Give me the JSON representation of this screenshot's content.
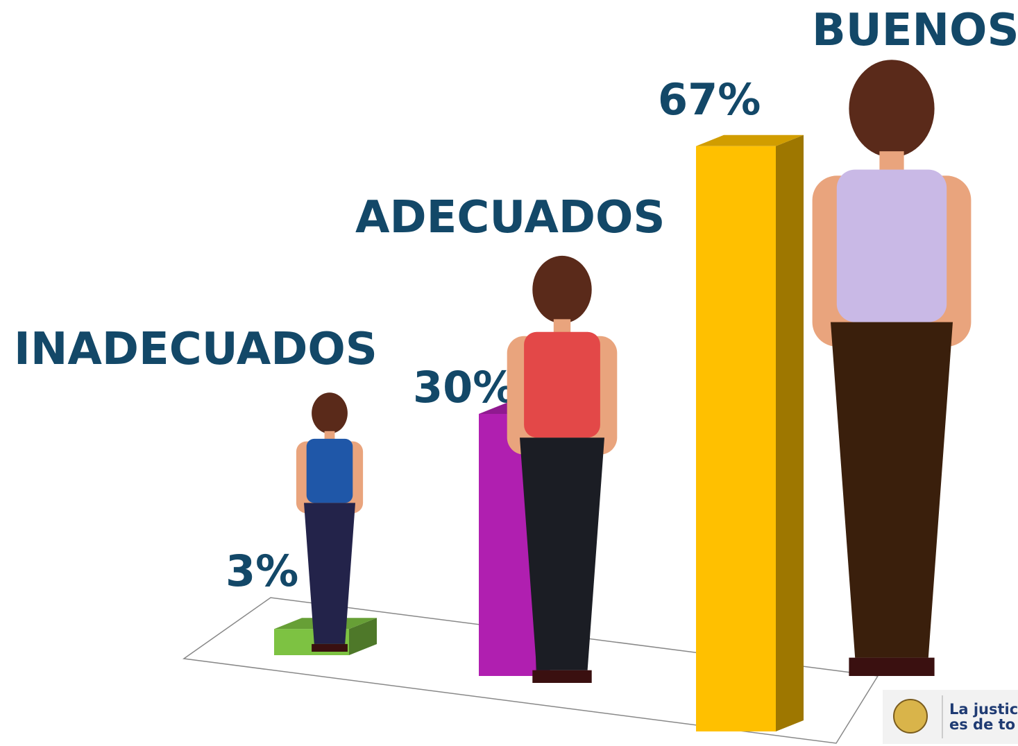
{
  "chart_data": {
    "type": "bar",
    "categories": [
      "INADECUADOS",
      "ADECUADOS",
      "BUENOS"
    ],
    "values": [
      3,
      30,
      67
    ],
    "value_labels": [
      "3%",
      "30%",
      "67%"
    ],
    "colors": [
      "#7dc242",
      "#b01fb0",
      "#ffc000"
    ]
  },
  "logo": {
    "lines": [
      "La justic",
      "es de to"
    ]
  }
}
